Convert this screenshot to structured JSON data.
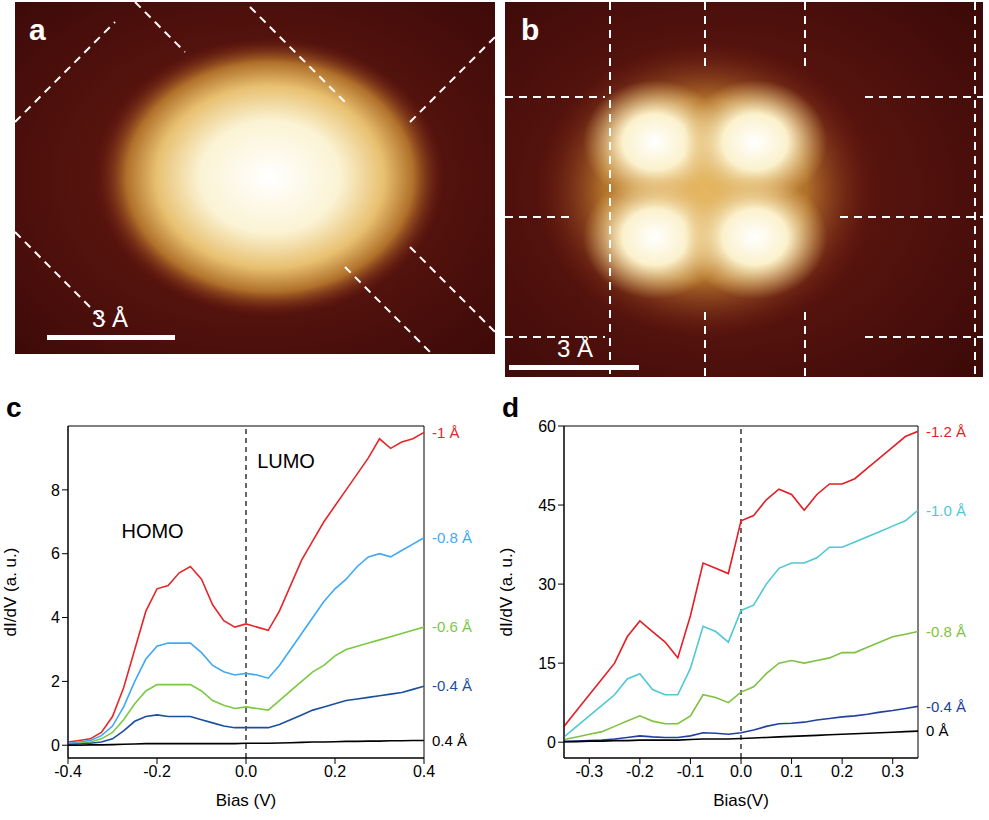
{
  "images": [
    {
      "panel": "a",
      "scale_bar": "3 Å"
    },
    {
      "panel": "b",
      "scale_bar": "3 Å"
    }
  ],
  "chart_data": [
    {
      "panel": "c",
      "type": "line",
      "x_label": "Bias (V)",
      "y_label": "dI/dV (a. u.)",
      "xlim": [
        -0.4,
        0.4
      ],
      "xticks": [
        -0.4,
        -0.2,
        {
          "value": 0,
          "label": "0.0"
        },
        0.2,
        0.4
      ],
      "ylim": [
        -0.4,
        10
      ],
      "yticks": [
        0,
        2,
        4,
        6,
        8
      ],
      "vline": 0,
      "annotations": [
        {
          "text": "HOMO",
          "x": -0.21,
          "y": 6.7
        },
        {
          "text": "LUMO",
          "x": 0.09,
          "y": 8.9
        }
      ],
      "x": [
        -0.4,
        -0.375,
        -0.35,
        -0.325,
        -0.3,
        -0.275,
        -0.25,
        -0.225,
        -0.2,
        -0.175,
        -0.15,
        -0.125,
        -0.1,
        -0.075,
        -0.05,
        -0.025,
        0,
        0.025,
        0.05,
        0.075,
        0.1,
        0.125,
        0.15,
        0.175,
        0.2,
        0.225,
        0.25,
        0.275,
        0.3,
        0.325,
        0.35,
        0.375,
        0.4
      ],
      "series": [
        {
          "name": "-1 Å",
          "color": "#e8262a",
          "values": [
            0.1,
            0.15,
            0.2,
            0.4,
            0.9,
            1.8,
            3.0,
            4.2,
            4.9,
            5.0,
            5.4,
            5.6,
            5.2,
            4.4,
            3.9,
            3.7,
            3.8,
            3.7,
            3.6,
            4.2,
            5.0,
            5.8,
            6.4,
            7.0,
            7.5,
            8.0,
            8.5,
            9.0,
            9.6,
            9.3,
            9.5,
            9.6,
            9.8
          ]
        },
        {
          "name": "-0.8 Å",
          "color": "#3fa9f5",
          "values": [
            0.05,
            0.1,
            0.15,
            0.3,
            0.6,
            1.2,
            2.0,
            2.7,
            3.1,
            3.2,
            3.2,
            3.2,
            2.9,
            2.5,
            2.3,
            2.2,
            2.25,
            2.2,
            2.1,
            2.5,
            3.0,
            3.5,
            4.0,
            4.5,
            4.9,
            5.2,
            5.6,
            5.9,
            6.0,
            5.9,
            6.1,
            6.3,
            6.5
          ]
        },
        {
          "name": "-0.6 Å",
          "color": "#7ac943",
          "values": [
            0.03,
            0.06,
            0.1,
            0.2,
            0.4,
            0.8,
            1.3,
            1.7,
            1.9,
            1.9,
            1.9,
            1.9,
            1.7,
            1.4,
            1.25,
            1.15,
            1.2,
            1.15,
            1.1,
            1.4,
            1.7,
            2.0,
            2.3,
            2.5,
            2.8,
            3.0,
            3.1,
            3.2,
            3.3,
            3.4,
            3.5,
            3.6,
            3.7
          ]
        },
        {
          "name": "-0.4 Å",
          "color": "#1a4fa0",
          "values": [
            0.02,
            0.04,
            0.06,
            0.1,
            0.2,
            0.45,
            0.75,
            0.9,
            0.95,
            0.9,
            0.9,
            0.9,
            0.8,
            0.7,
            0.6,
            0.55,
            0.55,
            0.55,
            0.55,
            0.65,
            0.8,
            0.95,
            1.1,
            1.2,
            1.3,
            1.4,
            1.45,
            1.5,
            1.55,
            1.6,
            1.65,
            1.75,
            1.85
          ]
        },
        {
          "name": "0.4 Å",
          "color": "#000000",
          "values": [
            0.0,
            0.0,
            0.01,
            0.01,
            0.02,
            0.03,
            0.04,
            0.05,
            0.05,
            0.05,
            0.05,
            0.05,
            0.05,
            0.05,
            0.05,
            0.05,
            0.06,
            0.06,
            0.06,
            0.07,
            0.08,
            0.09,
            0.1,
            0.1,
            0.11,
            0.12,
            0.12,
            0.13,
            0.13,
            0.14,
            0.14,
            0.15,
            0.15
          ]
        }
      ]
    },
    {
      "panel": "d",
      "type": "line",
      "x_label": "Bias(V)",
      "y_label": "dI/dV (a. u.)",
      "xlim": [
        -0.35,
        0.35
      ],
      "xticks": [
        -0.3,
        -0.2,
        -0.1,
        {
          "value": 0,
          "label": "0.0"
        },
        0.1,
        0.2,
        0.3
      ],
      "ylim": [
        -3,
        60
      ],
      "yticks": [
        0,
        15,
        30,
        45,
        60
      ],
      "vline": 0,
      "x": [
        -0.35,
        -0.325,
        -0.3,
        -0.275,
        -0.25,
        -0.225,
        -0.2,
        -0.175,
        -0.15,
        -0.125,
        -0.1,
        -0.075,
        -0.05,
        -0.025,
        0,
        0.025,
        0.05,
        0.075,
        0.1,
        0.125,
        0.15,
        0.175,
        0.2,
        0.225,
        0.25,
        0.275,
        0.3,
        0.325,
        0.35
      ],
      "series": [
        {
          "name": "-1.2 Å",
          "color": "#e41e26",
          "values": [
            3,
            6,
            9,
            12,
            15,
            20,
            23,
            21,
            19,
            16,
            24,
            34,
            33,
            32,
            42,
            43,
            46,
            48,
            47,
            44,
            47,
            49,
            49,
            50,
            52,
            54,
            56,
            58,
            59
          ]
        },
        {
          "name": "-1.0 Å",
          "color": "#4fc8d6",
          "values": [
            1,
            3,
            5,
            7,
            9,
            12,
            13,
            10,
            9,
            9,
            14,
            22,
            21,
            19,
            25,
            26,
            30,
            33,
            34,
            34,
            35,
            37,
            37,
            38,
            39,
            40,
            41,
            42,
            44
          ]
        },
        {
          "name": "-0.8 Å",
          "color": "#7fc241",
          "values": [
            0.5,
            1,
            1.5,
            2,
            3,
            4,
            5,
            4,
            3.5,
            3.5,
            5,
            9,
            8.5,
            7.5,
            9.5,
            10.5,
            13,
            15,
            15.5,
            15,
            15.5,
            16,
            17,
            17,
            18,
            19,
            20,
            20.5,
            21
          ]
        },
        {
          "name": "-0.4 Å",
          "color": "#2340a0",
          "values": [
            0.1,
            0.2,
            0.3,
            0.4,
            0.6,
            0.9,
            1.2,
            1,
            0.9,
            0.9,
            1.2,
            1.8,
            1.7,
            1.5,
            1.8,
            2.3,
            3,
            3.5,
            3.6,
            3.8,
            4.2,
            4.5,
            4.8,
            5,
            5.3,
            5.7,
            6,
            6.4,
            6.8
          ]
        },
        {
          "name": "0 Å",
          "color": "#000000",
          "values": [
            0.1,
            0.1,
            0.2,
            0.2,
            0.3,
            0.3,
            0.4,
            0.4,
            0.4,
            0.4,
            0.5,
            0.6,
            0.6,
            0.6,
            0.7,
            0.8,
            0.9,
            1,
            1.1,
            1.2,
            1.3,
            1.4,
            1.5,
            1.6,
            1.7,
            1.8,
            1.9,
            2,
            2.1
          ]
        }
      ]
    }
  ]
}
